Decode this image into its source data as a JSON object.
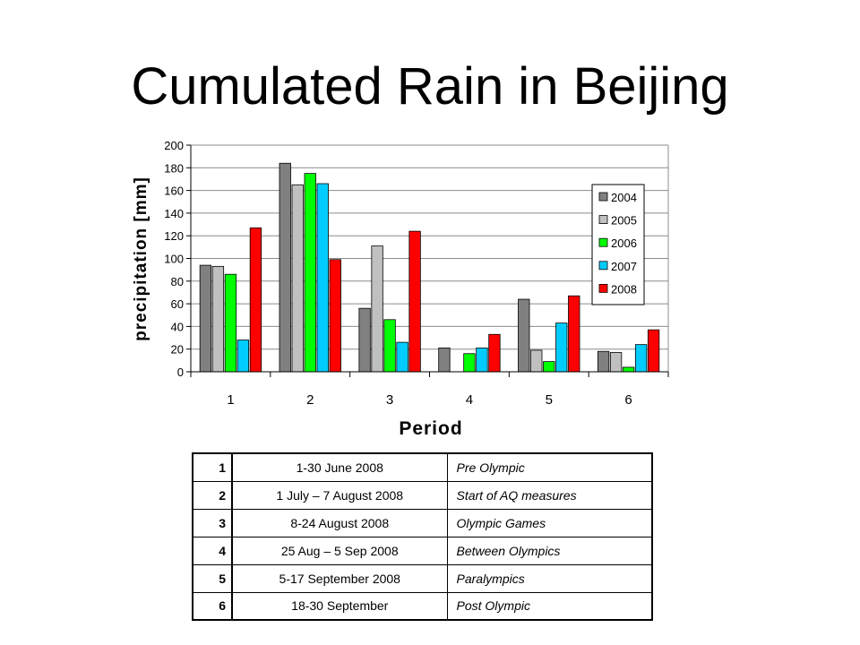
{
  "title": "Cumulated Rain in Beijing",
  "chart_data": {
    "type": "bar",
    "categories": [
      "1",
      "2",
      "3",
      "4",
      "5",
      "6"
    ],
    "series": [
      {
        "name": "2004",
        "color": "#808080",
        "values": [
          94,
          184,
          56,
          21,
          64,
          18
        ]
      },
      {
        "name": "2005",
        "color": "#c0c0c0",
        "values": [
          93,
          165,
          111,
          0,
          19,
          17
        ]
      },
      {
        "name": "2006",
        "color": "#00ff00",
        "values": [
          86,
          175,
          46,
          16,
          9,
          4
        ]
      },
      {
        "name": "2007",
        "color": "#00ccff",
        "values": [
          28,
          166,
          26,
          21,
          43,
          24
        ]
      },
      {
        "name": "2008",
        "color": "#ff0000",
        "values": [
          127,
          99,
          124,
          33,
          67,
          37
        ]
      }
    ],
    "xlabel": "Period",
    "ylabel": "precipitation [mm]",
    "ylim": [
      0,
      200
    ],
    "yticks": [
      0,
      20,
      40,
      60,
      80,
      100,
      120,
      140,
      160,
      180,
      200
    ],
    "grid": true,
    "legend": "right"
  },
  "periods": [
    {
      "num": "1",
      "dates": "1-30 June 2008",
      "desc": "Pre Olympic"
    },
    {
      "num": "2",
      "dates": "1 July – 7 August 2008",
      "desc": "Start of AQ measures"
    },
    {
      "num": "3",
      "dates": "8-24 August 2008",
      "desc": "Olympic Games"
    },
    {
      "num": "4",
      "dates": "25 Aug – 5 Sep 2008",
      "desc": "Between Olympics"
    },
    {
      "num": "5",
      "dates": "5-17 September 2008",
      "desc": "Paralympics"
    },
    {
      "num": "6",
      "dates": "18-30 September",
      "desc": "Post Olympic"
    }
  ]
}
